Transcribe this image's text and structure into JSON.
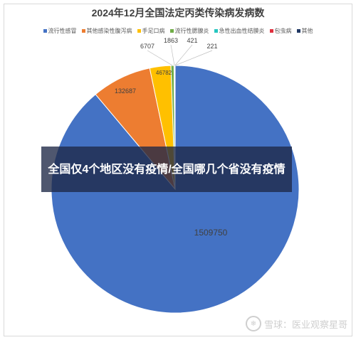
{
  "chart_data": {
    "type": "pie",
    "title": "2024年12月全国法定丙类传染病发病数",
    "legend_position": "top",
    "series": [
      {
        "name": "流行性感冒",
        "value": 1509750,
        "color": "#4472C4",
        "label": "1509750"
      },
      {
        "name": "其他感染性腹泻病",
        "value": 132687,
        "color": "#ED7D31",
        "label": "132687"
      },
      {
        "name": "手足口病",
        "value": 46782,
        "color": "#FFC000",
        "label": "46782"
      },
      {
        "name": "流行性腮腺炎",
        "value": 6707,
        "color": "#70AD47",
        "label": "6707"
      },
      {
        "name": "急性出血性结膜炎",
        "value": 1863,
        "color": "#26C6C0",
        "label": "1863"
      },
      {
        "name": "包虫病",
        "value": 421,
        "color": "#E0303E",
        "label": "421"
      },
      {
        "name": "其他",
        "value": 221,
        "color": "#203864",
        "label": "221"
      }
    ]
  },
  "overlay": {
    "headline": "全国仅4个地区没有疫情/全国哪几个省没有疫情"
  },
  "watermark": {
    "icon": "snowball-icon",
    "text": "雪球：医业观察星哥"
  }
}
